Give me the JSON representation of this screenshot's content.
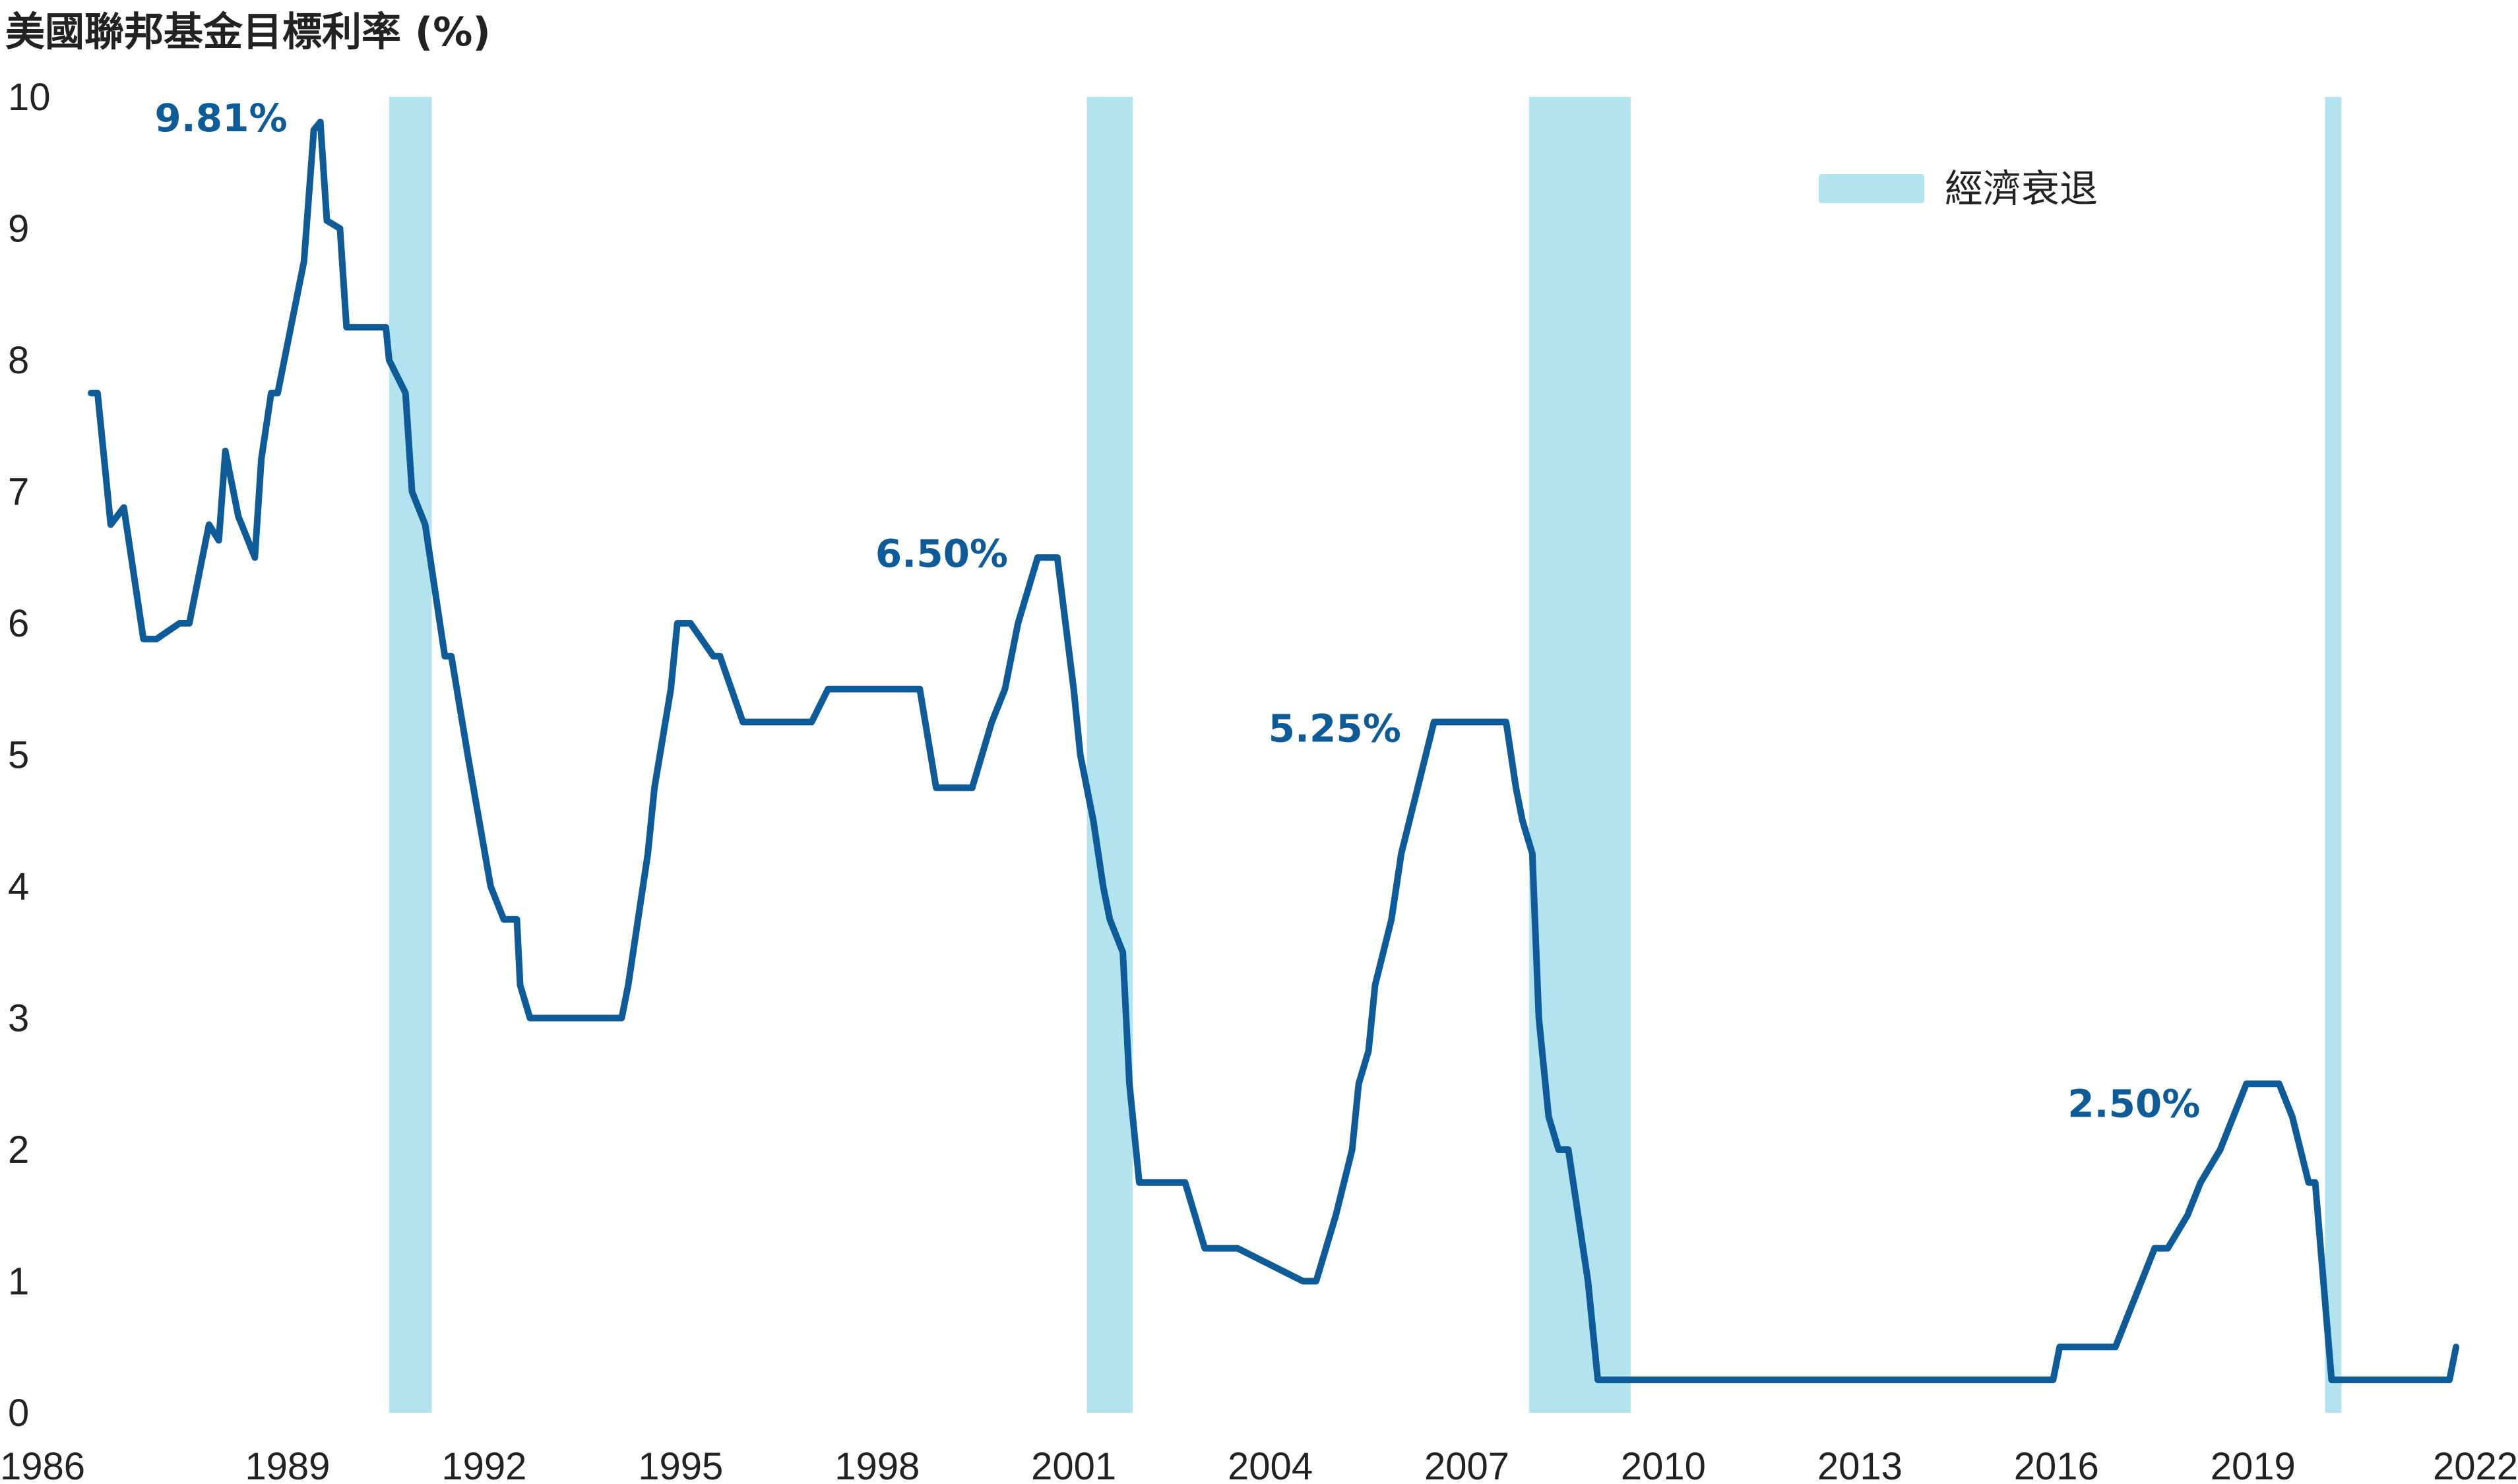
{
  "chart_data": {
    "type": "line",
    "title": "美國聯邦基金目標利率 (%)",
    "xlabel": "",
    "ylabel": "",
    "xlim": [
      1986,
      2022.2
    ],
    "ylim": [
      0,
      10
    ],
    "x_ticks": [
      1986,
      1989,
      1992,
      1995,
      1998,
      2001,
      2004,
      2007,
      2010,
      2013,
      2016,
      2019,
      2022
    ],
    "y_ticks": [
      0,
      1,
      2,
      3,
      4,
      5,
      6,
      7,
      8,
      9,
      10
    ],
    "grid": false,
    "colors": {
      "line": "#0d5c99",
      "recession": "#b2e3ee",
      "peak_label": "#0d5c99",
      "text": "#222222"
    },
    "legend": {
      "position": "top-right",
      "label": "經濟衰退"
    },
    "recessions": [
      {
        "start": 1990.55,
        "end": 1991.2
      },
      {
        "start": 2001.2,
        "end": 2001.9
      },
      {
        "start": 2007.95,
        "end": 2009.5
      },
      {
        "start": 2020.1,
        "end": 2020.35
      }
    ],
    "annotations": [
      {
        "text": "9.81%",
        "x": 1989.4,
        "y": 9.81
      },
      {
        "text": "6.50%",
        "x": 2000.4,
        "y": 6.5
      },
      {
        "text": "5.25%",
        "x": 2006.5,
        "y": 5.25
      },
      {
        "text": "2.50%",
        "x": 2018.7,
        "y": 2.5
      }
    ],
    "series": [
      {
        "x": [
          1986.0,
          1986.1,
          1986.3,
          1986.5,
          1986.8,
          1987.0,
          1987.35,
          1987.5,
          1987.7,
          1987.8,
          1987.95,
          1988.05,
          1988.25,
          1988.3,
          1988.5,
          1988.6,
          1988.75,
          1988.85,
          1989.05,
          1989.25,
          1989.4,
          1989.5,
          1989.6,
          1989.8,
          1989.9,
          1990.0,
          1990.5,
          1990.55,
          1990.8,
          1990.9,
          1991.1,
          1991.25,
          1991.4,
          1991.5,
          1991.75,
          1992.1,
          1992.3,
          1992.5,
          1992.55,
          1992.7,
          1992.8,
          1994.1,
          1994.2,
          1994.35,
          1994.5,
          1994.6,
          1994.85,
          1994.95,
          1995.15,
          1995.5,
          1995.6,
          1995.95,
          1996.05,
          1997.0,
          1997.25,
          1998.65,
          1998.9,
          1999.45,
          1999.6,
          1999.75,
          1999.95,
          2000.15,
          2000.45,
          2000.6,
          2000.75,
          2001.0,
          2001.1,
          2001.3,
          2001.45,
          2001.55,
          2001.75,
          2001.85,
          2002.0,
          2002.5,
          2002.7,
          2003.0,
          2003.5,
          2004.5,
          2004.7,
          2004.85,
          2005.0,
          2005.25,
          2005.35,
          2005.5,
          2005.6,
          2005.85,
          2006.0,
          2006.25,
          2006.5,
          2006.55,
          2007.0,
          2007.6,
          2007.75,
          2007.85,
          2008.0,
          2008.1,
          2008.25,
          2008.4,
          2008.55,
          2008.85,
          2008.95,
          2009.0,
          2015.95,
          2016.05,
          2016.9,
          2017.1,
          2017.3,
          2017.5,
          2017.7,
          2018.0,
          2018.2,
          2018.5,
          2018.7,
          2018.9,
          2019.4,
          2019.6,
          2019.85,
          2019.95,
          2020.2,
          2022.0,
          2022.1
        ],
        "values": [
          7.75,
          7.75,
          6.75,
          6.88,
          5.88,
          5.88,
          6.0,
          6.0,
          6.5,
          6.75,
          6.63,
          7.31,
          6.81,
          6.75,
          6.5,
          7.25,
          7.75,
          7.75,
          8.25,
          8.75,
          9.75,
          9.81,
          9.06,
          9.0,
          8.25,
          8.25,
          8.25,
          8.0,
          7.75,
          7.0,
          6.75,
          6.25,
          5.75,
          5.75,
          5.0,
          4.0,
          3.75,
          3.75,
          3.25,
          3.0,
          3.0,
          3.0,
          3.25,
          3.75,
          4.25,
          4.75,
          5.5,
          6.0,
          6.0,
          5.75,
          5.75,
          5.25,
          5.25,
          5.25,
          5.5,
          5.5,
          4.75,
          4.75,
          5.0,
          5.25,
          5.5,
          6.0,
          6.5,
          6.5,
          6.5,
          5.5,
          5.0,
          4.5,
          4.0,
          3.75,
          3.5,
          2.5,
          1.75,
          1.75,
          1.75,
          1.25,
          1.25,
          1.0,
          1.0,
          1.25,
          1.5,
          2.0,
          2.5,
          2.75,
          3.25,
          3.75,
          4.25,
          4.75,
          5.25,
          5.25,
          5.25,
          5.25,
          4.75,
          4.5,
          4.25,
          3.0,
          2.25,
          2.0,
          2.0,
          1.0,
          0.5,
          0.25,
          0.25,
          0.5,
          0.5,
          0.75,
          1.0,
          1.25,
          1.25,
          1.5,
          1.75,
          2.0,
          2.25,
          2.5,
          2.5,
          2.25,
          1.75,
          1.75,
          0.25,
          0.25,
          0.5
        ]
      }
    ]
  }
}
